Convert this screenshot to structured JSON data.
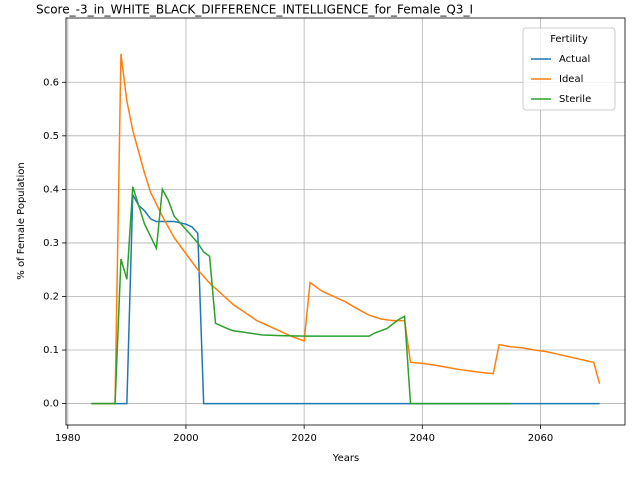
{
  "chart_data": {
    "type": "line",
    "title": "Score_-3_in_WHITE_BLACK_DIFFERENCE_INTELLIGENCE_for_Female_Q3_I",
    "xlabel": "Years",
    "ylabel": "% of Female Population",
    "legend_title": "Fertility",
    "legend": "upper right",
    "grid": true,
    "xlim": [
      1979.7,
      2074.3
    ],
    "xticks": [
      1980,
      2000,
      2020,
      2040,
      2060
    ],
    "ylim": [
      -0.04,
      0.72
    ],
    "yticks": [
      {
        "value": 0,
        "label": "0.0"
      },
      0.1,
      0.2,
      0.3,
      0.4,
      0.5,
      0.6
    ],
    "series": [
      {
        "name": "Actual",
        "color": "#1f77b4",
        "x": [
          1984,
          1988,
          1990,
          1991,
          1992,
          1993,
          1994,
          1995,
          1996,
          1998,
          2000,
          2001,
          2002,
          2003,
          2070
        ],
        "values": [
          0,
          0,
          0,
          0.39,
          0.37,
          0.36,
          0.345,
          0.34,
          0.34,
          0.34,
          0.335,
          0.33,
          0.318,
          0,
          0
        ]
      },
      {
        "name": "Ideal",
        "color": "#ff7f0e",
        "x": [
          1984,
          1988,
          1989,
          1990,
          1991,
          1992,
          1993,
          1994,
          1996,
          1998,
          2000,
          2002,
          2004,
          2006,
          2008,
          2010,
          2012,
          2014,
          2016,
          2018,
          2020,
          2021,
          2023,
          2025,
          2027,
          2029,
          2031,
          2033,
          2035,
          2037,
          2038,
          2040,
          2042,
          2044,
          2046,
          2048,
          2050,
          2052,
          2053,
          2055,
          2057,
          2059,
          2061,
          2063,
          2065,
          2067,
          2069,
          2070
        ],
        "values": [
          0,
          0,
          0.653,
          0.565,
          0.51,
          0.47,
          0.43,
          0.395,
          0.35,
          0.31,
          0.28,
          0.25,
          0.225,
          0.205,
          0.185,
          0.17,
          0.155,
          0.145,
          0.135,
          0.125,
          0.117,
          0.226,
          0.21,
          0.2,
          0.19,
          0.177,
          0.165,
          0.158,
          0.155,
          0.155,
          0.077,
          0.075,
          0.072,
          0.068,
          0.064,
          0.061,
          0.058,
          0.056,
          0.11,
          0.106,
          0.104,
          0.1,
          0.097,
          0.092,
          0.087,
          0.082,
          0.077,
          0.037
        ]
      },
      {
        "name": "Sterile",
        "color": "#2ca02c",
        "x": [
          1984,
          1988,
          1989,
          1990,
          1991,
          1992,
          1993,
          1995,
          1996,
          1997,
          1998,
          2000,
          2002,
          2003,
          2004,
          2005,
          2006,
          2007,
          2008,
          2010,
          2013,
          2016,
          2020,
          2031,
          2032,
          2034,
          2036,
          2037,
          2038,
          2055
        ],
        "values": [
          0,
          0,
          0.27,
          0.232,
          0.405,
          0.37,
          0.335,
          0.29,
          0.4,
          0.38,
          0.35,
          0.325,
          0.3,
          0.283,
          0.275,
          0.15,
          0.145,
          0.14,
          0.136,
          0.133,
          0.128,
          0.127,
          0.126,
          0.126,
          0.132,
          0.14,
          0.157,
          0.163,
          0,
          0
        ]
      }
    ]
  }
}
